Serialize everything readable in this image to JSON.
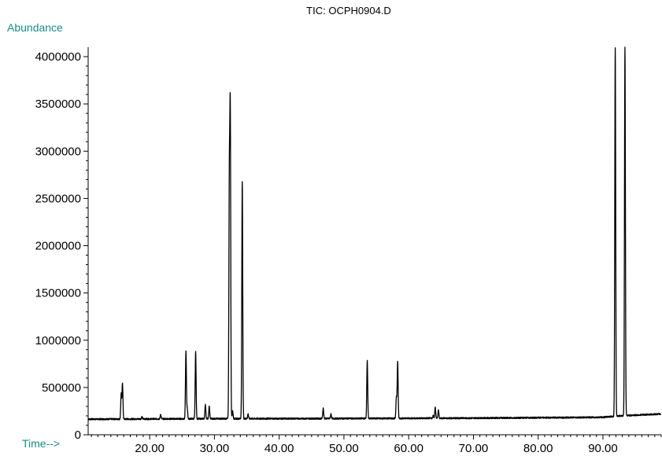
{
  "chart_data": {
    "type": "line",
    "title": "TIC: OCPH0904.D",
    "ylabel": "Abundance",
    "xlabel": "Time-->",
    "xlim": [
      10.5,
      99.0
    ],
    "ylim": [
      0,
      4100000
    ],
    "x_ticks": [
      20,
      30,
      40,
      50,
      60,
      70,
      80,
      90
    ],
    "x_tick_labels": [
      "20.00",
      "30.00",
      "40.00",
      "50.00",
      "60.00",
      "70.00",
      "80.00",
      "90.00"
    ],
    "y_ticks": [
      0,
      500000,
      1000000,
      1500000,
      2000000,
      2500000,
      3000000,
      3500000,
      4000000
    ],
    "y_tick_labels": [
      "0",
      "500000",
      "1000000",
      "1500000",
      "2000000",
      "2500000",
      "3000000",
      "3500000",
      "4000000"
    ],
    "legend": "none",
    "grid": false,
    "colors": {
      "trace": "#000000",
      "axis": "#000000",
      "label_accent": "#1a8a8a"
    },
    "baseline_points": [
      [
        10.5,
        165000
      ],
      [
        30.0,
        170000
      ],
      [
        50.0,
        172000
      ],
      [
        70.0,
        176000
      ],
      [
        90.0,
        185000
      ],
      [
        92.5,
        200000
      ],
      [
        99.0,
        220000
      ]
    ],
    "peaks": [
      {
        "rt": 15.6,
        "height": 430000
      },
      {
        "rt": 15.8,
        "height": 545000
      },
      {
        "rt": 18.8,
        "height": 190000
      },
      {
        "rt": 21.7,
        "height": 215000
      },
      {
        "rt": 25.6,
        "height": 880000
      },
      {
        "rt": 25.8,
        "height": 280000
      },
      {
        "rt": 27.1,
        "height": 880000
      },
      {
        "rt": 28.6,
        "height": 320000
      },
      {
        "rt": 29.2,
        "height": 300000
      },
      {
        "rt": 32.3,
        "height": 2590000
      },
      {
        "rt": 32.45,
        "height": 3330000
      },
      {
        "rt": 32.8,
        "height": 260000
      },
      {
        "rt": 34.3,
        "height": 2680000
      },
      {
        "rt": 35.2,
        "height": 220000
      },
      {
        "rt": 46.8,
        "height": 280000
      },
      {
        "rt": 48.0,
        "height": 220000
      },
      {
        "rt": 53.6,
        "height": 790000
      },
      {
        "rt": 58.1,
        "height": 400000
      },
      {
        "rt": 58.3,
        "height": 770000
      },
      {
        "rt": 63.8,
        "height": 205000
      },
      {
        "rt": 64.1,
        "height": 290000
      },
      {
        "rt": 64.6,
        "height": 260000
      },
      {
        "rt": 91.9,
        "height": 4100000
      },
      {
        "rt": 93.4,
        "height": 4100000
      }
    ]
  }
}
